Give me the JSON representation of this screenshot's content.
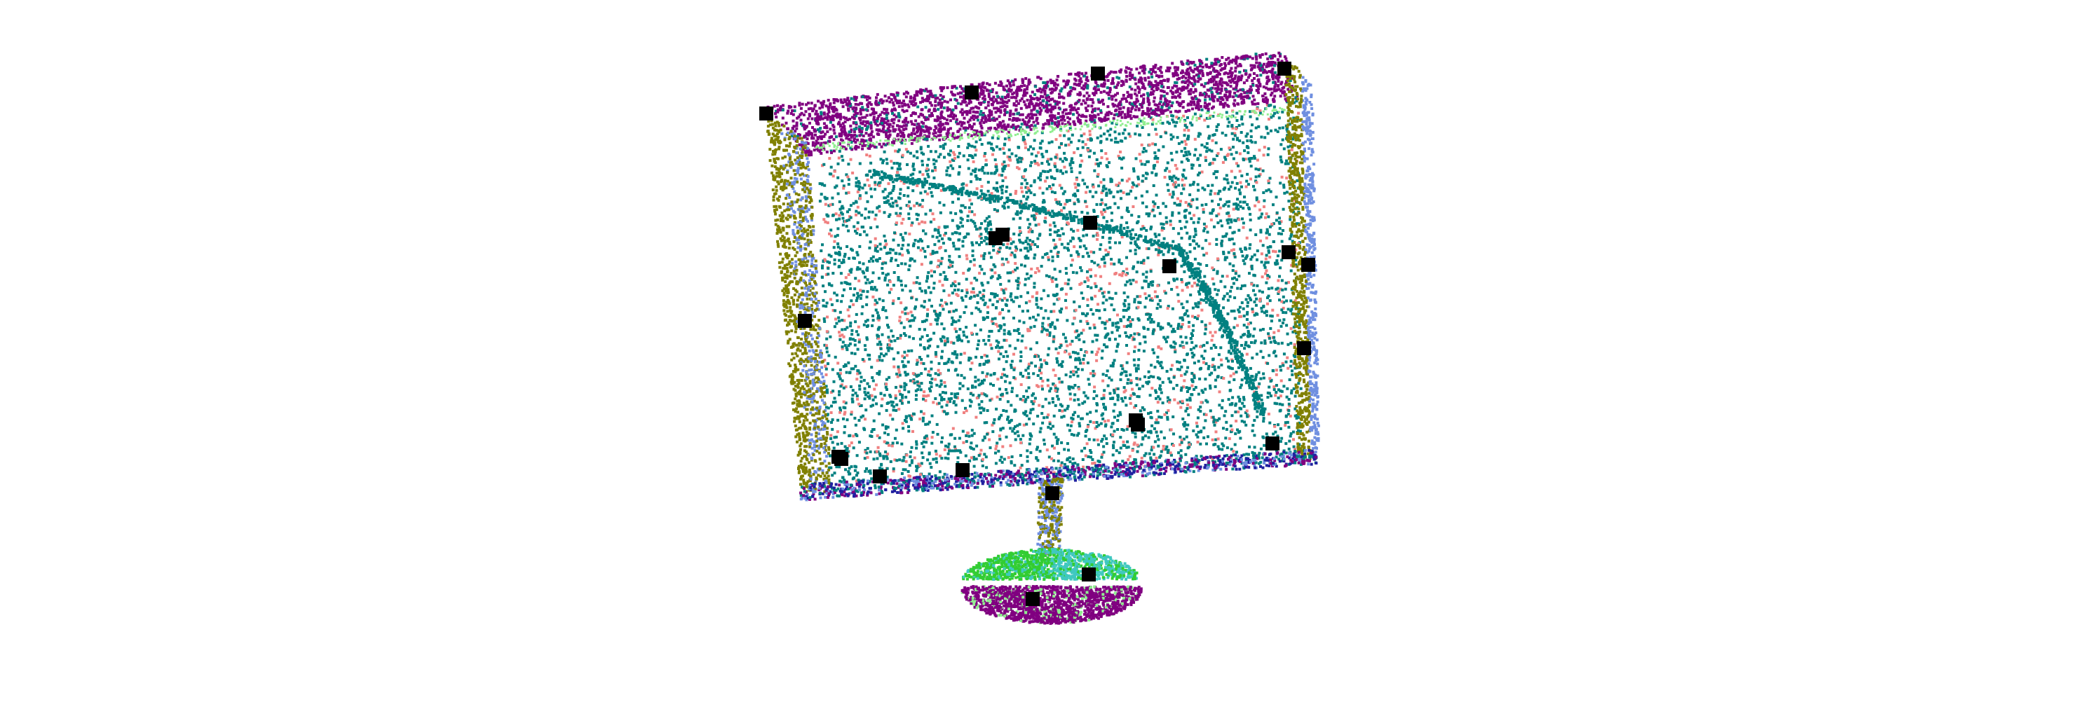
{
  "scene": {
    "subject": "monitor-point-cloud",
    "background_color": "#ffffff",
    "palette": {
      "screen_face": "#008080",
      "screen_sparse": "#f08080",
      "top_edge": "#800080",
      "side_frame": "#808000",
      "side_edge": "#6f8fe0",
      "bottom_edge": "#2020a0",
      "highlight": "#90ee90",
      "stand_neck": "#808000",
      "base_top": "#32cd32",
      "base_cyan": "#40c8c0",
      "base_bottom": "#800080",
      "keypoint": "#000000"
    },
    "keypoint_count": 22,
    "point_density": "dense"
  }
}
